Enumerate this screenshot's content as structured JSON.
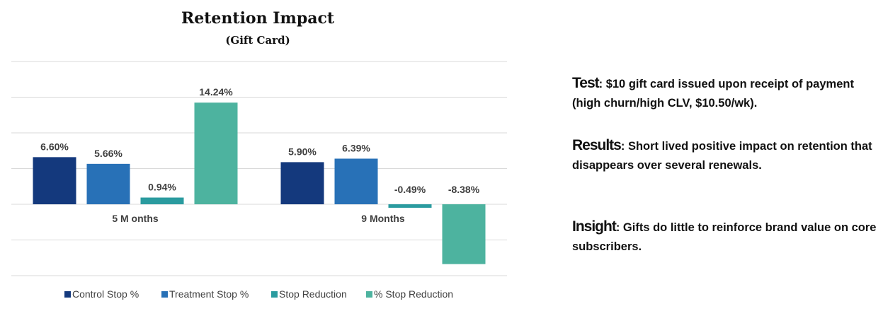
{
  "chart_data": {
    "type": "bar",
    "title": "Retention Impact",
    "subtitle": "(Gift Card)",
    "categories": [
      "5 Months",
      "9 Months"
    ],
    "category_labels_display": [
      "5 M onths",
      "9 Months"
    ],
    "series": [
      {
        "name": "Control Stop %",
        "color": "#14397d",
        "values": [
          6.6,
          5.9
        ],
        "labels": [
          "6.60%",
          "5.90%"
        ]
      },
      {
        "name": "Treatment Stop %",
        "color": "#2871b7",
        "values": [
          5.66,
          6.39
        ],
        "labels": [
          "5.66%",
          "6.39%"
        ]
      },
      {
        "name": "Stop Reduction",
        "color": "#2a9b9f",
        "values": [
          0.94,
          -0.49
        ],
        "labels": [
          "0.94%",
          "-0.49%"
        ]
      },
      {
        "name": "% Stop Reduction",
        "color": "#4db39f",
        "values": [
          14.24,
          -8.38
        ],
        "labels": [
          "14.24%",
          "-8.38%"
        ]
      }
    ],
    "ylim": [
      -10,
      20
    ],
    "grid": true,
    "legend_position": "bottom"
  },
  "notes": [
    {
      "heading": "Test",
      "body": " $10 gift card issued upon receipt of payment (high churn/high CLV, $10.50/wk)."
    },
    {
      "heading": "Results",
      "body": " Short lived positive impact on retention that disappears over several renewals."
    },
    {
      "heading": "Insight",
      "body": " Gifts do little to reinforce brand value on core subscribers."
    }
  ]
}
